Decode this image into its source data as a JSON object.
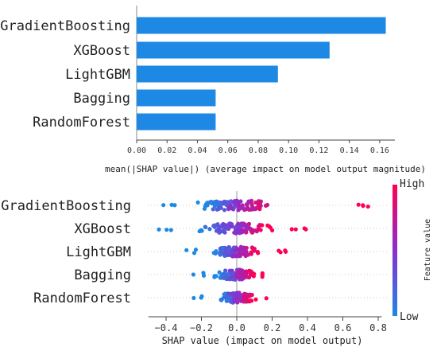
{
  "colors": {
    "bar": "#1e88e5",
    "high": "#ff0052",
    "low": "#1e88e5",
    "axis": "#444444",
    "guide": "#bbbbbb"
  },
  "chart_data": [
    {
      "type": "bar",
      "orientation": "horizontal",
      "categories": [
        "GradientBoosting",
        "XGBoost",
        "LightGBM",
        "Bagging",
        "RandomForest"
      ],
      "values": [
        0.164,
        0.127,
        0.093,
        0.052,
        0.052
      ],
      "xlabel": "mean(|SHAP value|) (average impact on model output magnitude)",
      "xlim": [
        0,
        0.17
      ],
      "xticks": [
        0.0,
        0.02,
        0.04,
        0.06,
        0.08,
        0.1,
        0.12,
        0.14,
        0.16
      ],
      "xtick_labels": [
        "0.00",
        "0.02",
        "0.04",
        "0.06",
        "0.08",
        "0.10",
        "0.12",
        "0.14",
        "0.16"
      ],
      "grid": false
    },
    {
      "type": "scatter",
      "subtype": "beeswarm",
      "categories": [
        "GradientBoosting",
        "XGBoost",
        "LightGBM",
        "Bagging",
        "RandomForest"
      ],
      "xlabel": "SHAP value (impact on model output)",
      "xlim": [
        -0.5,
        0.82
      ],
      "xticks": [
        -0.4,
        -0.2,
        0.0,
        0.2,
        0.4,
        0.6,
        0.8
      ],
      "xtick_labels": [
        "−0.4",
        "−0.2",
        "0.0",
        "0.2",
        "0.4",
        "0.6",
        "0.8"
      ],
      "colorbar": {
        "label": "Feature value",
        "high": "High",
        "low": "Low"
      },
      "ranges": [
        {
          "name": "GradientBoosting",
          "min": -0.43,
          "max": 0.75
        },
        {
          "name": "XGBoost",
          "min": -0.45,
          "max": 0.42
        },
        {
          "name": "LightGBM",
          "min": -0.3,
          "max": 0.3
        },
        {
          "name": "Bagging",
          "min": -0.25,
          "max": 0.22
        },
        {
          "name": "RandomForest",
          "min": -0.25,
          "max": 0.18
        }
      ],
      "grid": false
    }
  ]
}
